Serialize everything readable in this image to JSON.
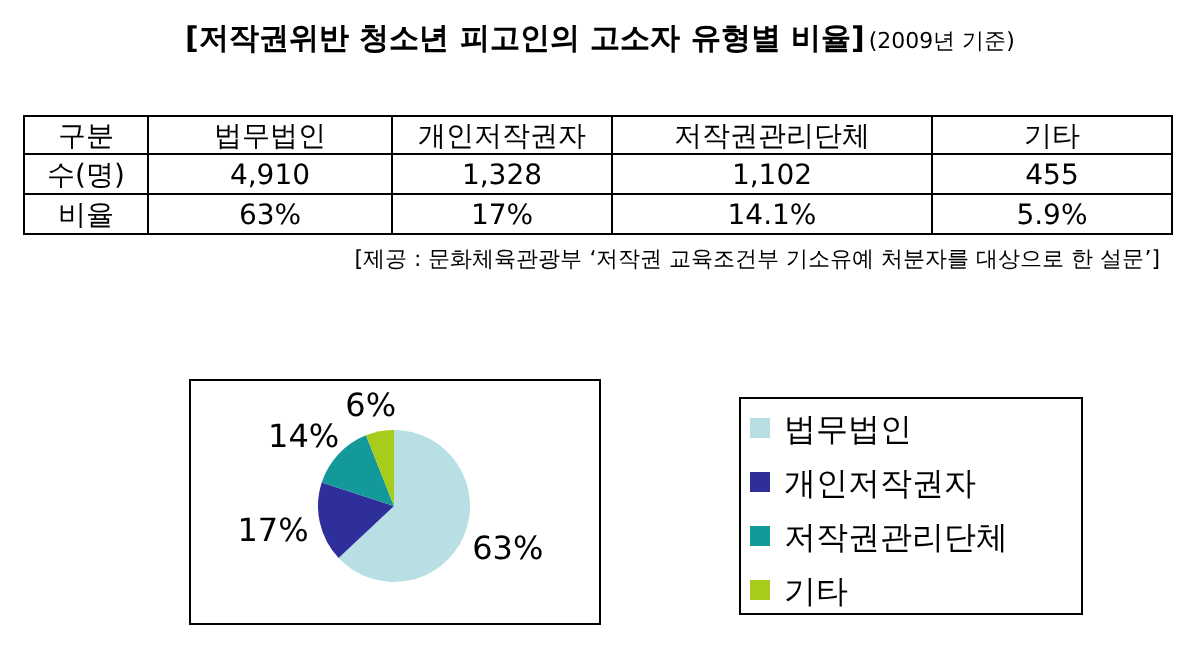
{
  "chart_data": [
    {
      "type": "other",
      "title": "[저작권위반 청소년 피고인의 고소자 유형별 비율]",
      "subtitle": "(2009년 기준)",
      "categories": [
        "법무법인",
        "개인저작권자",
        "저작권관리단체",
        "기타"
      ],
      "annotations": [
        "구분",
        "수(명)",
        "4,910",
        "1,328",
        "1,102",
        "455",
        "비율",
        "63%",
        "17%",
        "14.1%",
        "5.9%",
        "[제공 : 문화체육관광부 ‘저작권 교육조건부 기소유예 처분자를 대상으로 한 설문’]"
      ]
    },
    {
      "type": "pie",
      "categories": [
        "법무법인",
        "개인저작권자",
        "저작권관리단체",
        "기타"
      ],
      "values": [
        63,
        17,
        14,
        6
      ],
      "colors": [
        "#b8dfe4",
        "#2f2f9c",
        "#14999b",
        "#a8cc1c"
      ],
      "value_labels": [
        "63%",
        "17%",
        "14%",
        "6%"
      ],
      "legend": "right"
    }
  ]
}
